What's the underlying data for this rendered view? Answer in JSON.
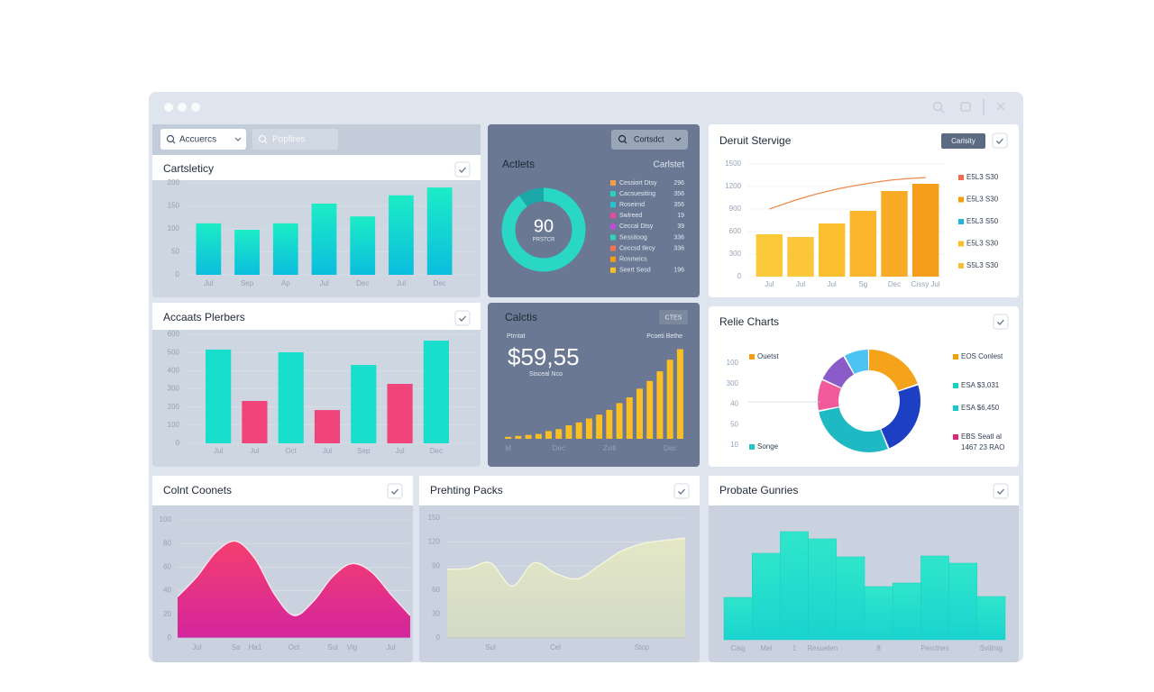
{
  "toolbar": {
    "search": "Accuercs",
    "filter": "Popfires"
  },
  "panels": [
    {
      "title": "Cartsleticy",
      "chart": {
        "type": "bar",
        "categories": [
          "Jul",
          "Sep",
          "Ap",
          "Jul",
          "Dec",
          "Jul",
          "Dec"
        ],
        "values": [
          112,
          98,
          112,
          155,
          127,
          173,
          190
        ],
        "color": "#1cecc6",
        "color2": "#0bbddd",
        "ylim": [
          0,
          200
        ],
        "yticks": [
          0,
          50,
          100,
          150,
          200
        ],
        "grid": true
      }
    },
    {
      "title": "Actlets",
      "subtitle": "Carlstet",
      "button": "Cortsdct",
      "chart": {
        "type": "donut",
        "value": 90,
        "label": "PRSTCR",
        "color": "#2ad6c4",
        "track": "#1aa9a8",
        "legend": [
          {
            "name": "Cessiort Dtsy",
            "color": "#f59e42",
            "value": 296
          },
          {
            "name": "Cacsuesiting",
            "color": "#22d3c0",
            "value": 356
          },
          {
            "name": "Roseirnd",
            "color": "#1fc7d4",
            "value": 356
          },
          {
            "name": "Swlreed",
            "color": "#ec4899",
            "value": 19
          },
          {
            "name": "Ceccal Dtsy",
            "color": "#c04bd8",
            "value": 39
          },
          {
            "name": "Sessitoog",
            "color": "#2dd4bf",
            "value": 336
          },
          {
            "name": "Ceccsd tlecy",
            "color": "#f97350",
            "value": 336
          },
          {
            "name": "Rosmeics",
            "color": "#f59e0b"
          },
          {
            "name": "Seert Sesd",
            "color": "#fbbf24",
            "value": 196
          }
        ]
      }
    },
    {
      "title": "Deruit Stervige",
      "button": "Carlsity",
      "chart": {
        "type": "combo",
        "categories": [
          "Jul",
          "Jul",
          "Jul",
          "Sg",
          "Dec",
          "Cissy Jul"
        ],
        "values": [
          564,
          528,
          708,
          876,
          1140,
          1236
        ],
        "colors": [
          "#fcc93a",
          "#fcc63a",
          "#fbbf30",
          "#fbb52c",
          "#f9ab28",
          "#f79d1c"
        ],
        "line": [
          900,
          1040,
          1150,
          1230,
          1290,
          1320
        ],
        "line_color": "#f0894c",
        "ylim": [
          0,
          1500
        ],
        "yticks": [
          0,
          300,
          600,
          900,
          1200,
          1500
        ],
        "grid": true,
        "legend": [
          {
            "name": "E5L3 S30",
            "color": "#f46b4b"
          },
          {
            "name": "E5L3 S30",
            "color": "#f59e0b"
          },
          {
            "name": "E5L3 S50",
            "color": "#1fb8d9"
          },
          {
            "name": "E5L3 S30",
            "color": "#fbbf24"
          },
          {
            "name": "S5L3 S30",
            "color": "#f8c030"
          }
        ]
      }
    },
    {
      "title": "Accaats Plerbers",
      "chart": {
        "type": "bar",
        "categories": [
          "Jul",
          "Jul",
          "Oct",
          "Jul",
          "Sep",
          "Jul",
          "Dec"
        ],
        "values": [
          516,
          233,
          501,
          183,
          431,
          327,
          565
        ],
        "colors": [
          "#17dfcb",
          "#f0447a",
          "#17dfcb",
          "#f0447a",
          "#17dfcb",
          "#f0447a",
          "#17dfcb"
        ],
        "ylim": [
          0,
          600
        ],
        "yticks": [
          0,
          100,
          200,
          300,
          400,
          500,
          600
        ],
        "grid": true
      }
    },
    {
      "title": "Calctis",
      "button": "CTES",
      "caption": "Ptrntat",
      "caption_right": "Pcoeti Bethe",
      "kpi": "$59,55",
      "kpi_label": "Sisceal Nco",
      "chart": {
        "type": "bar",
        "categories": [
          "M",
          null,
          null,
          null,
          null,
          "Dec",
          null,
          null,
          null,
          null,
          "Zvill",
          null,
          null,
          null,
          null,
          null,
          "Dec",
          null
        ],
        "values": [
          2,
          3,
          4,
          5,
          8,
          10,
          14,
          17,
          21,
          25,
          30,
          37,
          43,
          52,
          60,
          70,
          82,
          93
        ],
        "color": "#fbbf24",
        "ylim": [
          0,
          100
        ]
      }
    },
    {
      "title": "Relie Charts",
      "chart": {
        "type": "ring",
        "side_ticks": [
          100,
          300,
          40,
          50,
          10
        ],
        "markers": [
          {
            "name": "Ouetst",
            "color": "#f59e0b"
          },
          {
            "name": "Songe",
            "color": "#22c5c5"
          }
        ],
        "values": [
          20,
          24,
          28,
          10,
          10,
          8
        ],
        "colors": [
          "#f5a31a",
          "#1d3fc4",
          "#1fb9c4",
          "#f05a9a",
          "#8b5cc9",
          "#4cc3f0"
        ],
        "legend": [
          {
            "name": "EOS Conlest",
            "color": "#f59e0b"
          },
          {
            "name": "ESA $3,031",
            "color": "#14d3c0"
          },
          {
            "name": "ESA $6,450",
            "color": "#14c9c9"
          },
          {
            "name": "EBS Seatl al",
            "sub": "1467 23 RAO",
            "color": "#db2777"
          }
        ]
      }
    },
    {
      "title": "Colnt Coonets",
      "chart": {
        "type": "area",
        "categories": [
          null,
          "Jul",
          null,
          "Sa",
          "Ha1",
          null,
          "Oct",
          null,
          "Sul",
          "Vig",
          null,
          "Jul",
          null
        ],
        "values": [
          35,
          52,
          73,
          82,
          67,
          37,
          19,
          31,
          52,
          63,
          56,
          37,
          19
        ],
        "color": "#f43f6e",
        "color2": "#d4259e",
        "line_color": "#fde4ef",
        "ylim": [
          0,
          100
        ],
        "yticks": [
          0,
          20,
          40,
          60,
          80,
          100
        ],
        "grid": true
      }
    },
    {
      "title": "Prehting Packs",
      "chart": {
        "type": "area",
        "categories": [
          null,
          null,
          "Sul",
          null,
          null,
          "Cel",
          null,
          null,
          null,
          "Stop",
          null,
          null
        ],
        "values": [
          86,
          87,
          94,
          65,
          94,
          81,
          74,
          90,
          108,
          118,
          122,
          125
        ],
        "color": "#e4e8c6",
        "color2": "#d3d9c6",
        "line_color": "#f4f6d8",
        "ylim": [
          0,
          150
        ],
        "yticks": [
          0,
          30,
          60,
          90,
          120,
          150
        ],
        "grid": true
      }
    },
    {
      "title": "Probate Gunries",
      "chart": {
        "type": "step",
        "categories": [
          "Cisg",
          "Mel",
          "1",
          "Resuelen",
          null,
          "8",
          null,
          "Perclnes",
          null,
          "Svillnig"
        ],
        "values": [
          47,
          96,
          120,
          112,
          92,
          59,
          63,
          93,
          85,
          48
        ],
        "color": "#2fe6cb",
        "color2": "#1ad3cf",
        "ylim": [
          0,
          130
        ]
      }
    }
  ]
}
